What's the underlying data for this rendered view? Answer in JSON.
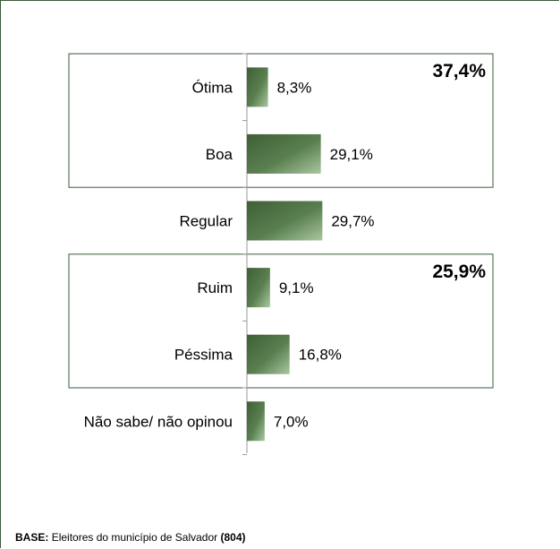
{
  "chart_data": {
    "type": "bar",
    "orientation": "horizontal",
    "categories": [
      "Ótima",
      "Boa",
      "Regular",
      "Ruim",
      "Péssima",
      "Não sabe/ não opinou"
    ],
    "values": [
      8.3,
      29.1,
      29.7,
      9.1,
      16.8,
      7.0
    ],
    "value_labels": [
      "8,3%",
      "29,1%",
      "29,7%",
      "9,1%",
      "16,8%",
      "7,0%"
    ],
    "unit": "%",
    "xlim": [
      0,
      60
    ],
    "grid": false,
    "legend": "none",
    "bar_color_dark": "#3f5f36",
    "bar_color_light": "#a9c7a0",
    "groups": [
      {
        "categories": [
          "Ótima",
          "Boa"
        ],
        "total_label": "37,4%"
      },
      {
        "categories": [
          "Ruim",
          "Péssima"
        ],
        "total_label": "25,9%"
      }
    ]
  },
  "footer": {
    "base_label": "BASE:",
    "base_text": "Eleitores do município de Salvador",
    "base_count": "(804)"
  },
  "colors": {
    "frame": "#3a5a3a",
    "group_box": "#3a5a3a",
    "axis": "#999999"
  }
}
